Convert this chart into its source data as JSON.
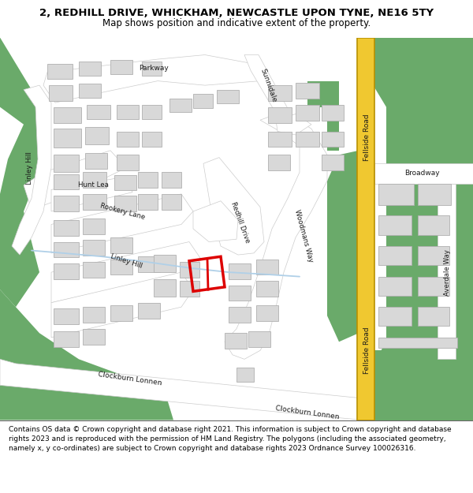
{
  "title_line1": "2, REDHILL DRIVE, WHICKHAM, NEWCASTLE UPON TYNE, NE16 5TY",
  "title_line2": "Map shows position and indicative extent of the property.",
  "footer_text": "Contains OS data © Crown copyright and database right 2021. This information is subject to Crown copyright and database rights 2023 and is reproduced with the permission of HM Land Registry. The polygons (including the associated geometry, namely x, y co-ordinates) are subject to Crown copyright and database rights 2023 Ordnance Survey 100026316.",
  "bg_map_color": "#f0f0f0",
  "road_color": "#ffffff",
  "road_outline_color": "#cccccc",
  "green_color": "#6aaa6a",
  "yellow_road_color": "#f0c830",
  "yellow_road_edge": "#b89000",
  "highlight_color": "#dd0000",
  "building_color": "#d8d8d8",
  "building_outline": "#b0b0b0",
  "footer_bg": "#ffffff",
  "title_bg": "#ffffff",
  "water_color": "#b0d0e8",
  "title_fontsize": 9.5,
  "subtitle_fontsize": 8.5,
  "footer_fontsize": 6.5,
  "road_label_fontsize": 6.5
}
